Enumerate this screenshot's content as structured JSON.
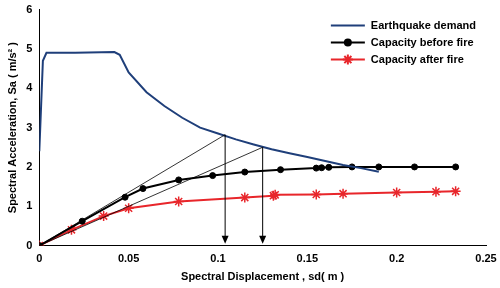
{
  "chart_data": {
    "type": "line",
    "x_label": "Spectral Displacement , sd( m )",
    "y_label": "Spectral Acceleration, Sa ( m/s² )",
    "xlim": [
      0,
      0.25
    ],
    "xticks": [
      0,
      0.05,
      0.1,
      0.15,
      0.2,
      0.25
    ],
    "ylim": [
      0,
      6
    ],
    "yticks": [
      0,
      1,
      2,
      3,
      4,
      5,
      6
    ],
    "grid": false,
    "legend": "upper right",
    "series": [
      {
        "name": "Earthquake demand",
        "color": "#1f3f7a",
        "marker": "none",
        "line_style": "solid",
        "x": [
          0,
          0.002,
          0.004,
          0.02,
          0.042,
          0.045,
          0.05,
          0.06,
          0.07,
          0.08,
          0.09,
          0.1,
          0.11,
          0.12,
          0.13,
          0.14,
          0.15,
          0.16,
          0.17,
          0.18,
          0.19
        ],
        "values": [
          2.4,
          4.7,
          4.9,
          4.9,
          4.92,
          4.85,
          4.4,
          3.9,
          3.55,
          3.25,
          3.0,
          2.85,
          2.7,
          2.57,
          2.45,
          2.35,
          2.25,
          2.15,
          2.05,
          1.97,
          1.88
        ]
      },
      {
        "name": "Capacity before fire",
        "color": "#000000",
        "marker": "circle",
        "line_style": "solid",
        "x": [
          0,
          0.024,
          0.048,
          0.058,
          0.078,
          0.097,
          0.115,
          0.135,
          0.155,
          0.158,
          0.162,
          0.175,
          0.19,
          0.21,
          0.233
        ],
        "values": [
          0,
          0.62,
          1.23,
          1.45,
          1.67,
          1.78,
          1.87,
          1.93,
          1.97,
          1.98,
          1.99,
          2.0,
          2.0,
          2.0,
          2.0
        ]
      },
      {
        "name": "Capacity after fire",
        "color": "#e8262b",
        "marker": "star",
        "line_style": "solid",
        "x": [
          0,
          0.018,
          0.036,
          0.05,
          0.078,
          0.115,
          0.131,
          0.132,
          0.155,
          0.17,
          0.2,
          0.222,
          0.233
        ],
        "values": [
          0,
          0.4,
          0.75,
          0.95,
          1.12,
          1.22,
          1.27,
          1.29,
          1.3,
          1.32,
          1.35,
          1.37,
          1.38
        ]
      }
    ],
    "reference_lines": [
      {
        "x": [
          0,
          0.104
        ],
        "y": [
          0,
          2.82
        ]
      },
      {
        "x": [
          0,
          0.125
        ],
        "y": [
          0,
          2.5
        ]
      }
    ],
    "arrows": [
      {
        "x": 0.104,
        "y": [
          2.82,
          0.05
        ]
      },
      {
        "x": 0.125,
        "y": [
          2.5,
          0.05
        ]
      }
    ]
  }
}
